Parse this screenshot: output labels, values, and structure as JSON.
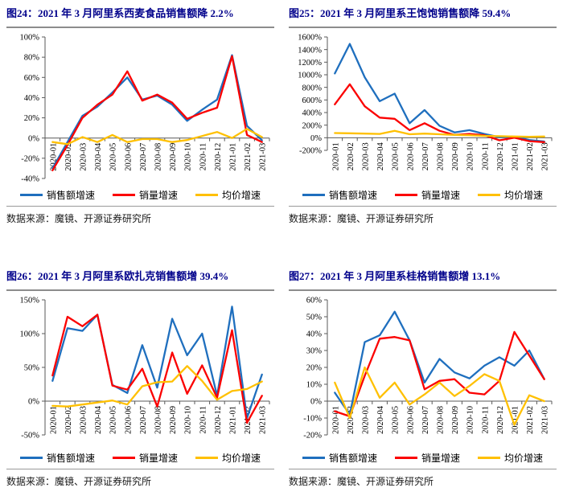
{
  "source_label": "数据来源：魔镜、开源证券研究所",
  "colors": {
    "sales": "#1F6FBE",
    "volume": "#FB0000",
    "price": "#FFC000",
    "title_text": "#00008B",
    "axis": "#595959",
    "rule_heavy": "#8C8C8C",
    "rule_light": "#9A9A9A"
  },
  "chart_data": [
    {
      "id": "fig24",
      "type": "line",
      "title": "图24：2021 年 3 月阿里系西麦食品销售额降 2.2%",
      "xlabel": "",
      "ylabel": "",
      "ylim": [
        -40,
        100
      ],
      "ytick_step": 20,
      "grid": false,
      "legend_position": "bottom",
      "categories": [
        "2020-01",
        "2020-02",
        "2020-03",
        "2020-04",
        "2020-05",
        "2020-06",
        "2020-07",
        "2020-08",
        "2020-09",
        "2020-10",
        "2020-11",
        "2020-12",
        "2021-01",
        "2021-02",
        "2021-03"
      ],
      "series": [
        {
          "name": "销售额增速",
          "color_key": "sales",
          "values": [
            -30,
            -4,
            22,
            31,
            45,
            60,
            38,
            42,
            33,
            17,
            28,
            38,
            82,
            12,
            -2.2
          ]
        },
        {
          "name": "销量增速",
          "color_key": "volume",
          "values": [
            -32,
            -7,
            20,
            33,
            43,
            66,
            37,
            43,
            35,
            19,
            25,
            30,
            81,
            3,
            -4
          ]
        },
        {
          "name": "均价增速",
          "color_key": "price",
          "values": [
            -4,
            -6,
            1,
            -4,
            3,
            -4,
            -1,
            -1,
            -4,
            -2,
            2,
            6,
            0,
            9,
            1
          ]
        }
      ]
    },
    {
      "id": "fig25",
      "type": "line",
      "title": "图25：2021 年 3 月阿里系王饱饱销售额降 59.4%",
      "xlabel": "",
      "ylabel": "",
      "ylim": [
        -200,
        1600
      ],
      "ytick_step": 200,
      "grid": false,
      "legend_position": "bottom",
      "categories": [
        "2020-01",
        "2020-02",
        "2020-03",
        "2020-04",
        "2020-05",
        "2020-06",
        "2020-07",
        "2020-08",
        "2020-09",
        "2020-10",
        "2020-11",
        "2020-12",
        "2021-01",
        "2021-02",
        "2021-03"
      ],
      "series": [
        {
          "name": "销售额增速",
          "color_key": "sales",
          "values": [
            1020,
            1490,
            960,
            580,
            700,
            230,
            440,
            190,
            85,
            120,
            60,
            10,
            15,
            -35,
            -59.4
          ]
        },
        {
          "name": "销量增速",
          "color_key": "volume",
          "values": [
            530,
            850,
            500,
            320,
            300,
            120,
            230,
            110,
            45,
            60,
            40,
            -40,
            0,
            -55,
            -70
          ]
        },
        {
          "name": "均价增速",
          "color_key": "price",
          "values": [
            75,
            70,
            65,
            60,
            110,
            55,
            65,
            55,
            45,
            40,
            30,
            25,
            20,
            15,
            20
          ]
        }
      ]
    },
    {
      "id": "fig26",
      "type": "line",
      "title": "图26：2021 年 3 月阿里系欧扎克销售额增 39.4%",
      "xlabel": "",
      "ylabel": "",
      "ylim": [
        -50,
        150
      ],
      "ytick_step": 50,
      "grid": false,
      "legend_position": "bottom",
      "categories": [
        "2020-01",
        "2020-02",
        "2020-03",
        "2020-04",
        "2020-05",
        "2020-06",
        "2020-07",
        "2020-08",
        "2020-09",
        "2020-10",
        "2020-11",
        "2020-12",
        "2021-01",
        "2021-02",
        "2021-03"
      ],
      "series": [
        {
          "name": "销售额增速",
          "color_key": "sales",
          "values": [
            30,
            108,
            104,
            128,
            24,
            12,
            83,
            20,
            122,
            68,
            100,
            8,
            140,
            -25,
            39.4
          ]
        },
        {
          "name": "销量增速",
          "color_key": "volume",
          "values": [
            38,
            125,
            111,
            128,
            23,
            17,
            48,
            -8,
            72,
            11,
            53,
            5,
            105,
            -32,
            8
          ]
        },
        {
          "name": "均价增速",
          "color_key": "price",
          "values": [
            -7,
            -8,
            -5,
            -2,
            1,
            -5,
            22,
            28,
            29,
            52,
            30,
            2,
            15,
            18,
            29
          ]
        }
      ]
    },
    {
      "id": "fig27",
      "type": "line",
      "title": "图27：2021 年 3 月阿里系桂格销售额增 13.1%",
      "xlabel": "",
      "ylabel": "",
      "ylim": [
        -20,
        60
      ],
      "ytick_step": 10,
      "grid": false,
      "legend_position": "bottom",
      "categories": [
        "2020-01",
        "2020-02",
        "2020-03",
        "2020-04",
        "2020-05",
        "2020-06",
        "2020-07",
        "2020-08",
        "2020-09",
        "2020-10",
        "2020-11",
        "2020-12",
        "2021-01",
        "2021-02",
        "2021-03"
      ],
      "series": [
        {
          "name": "销售额增速",
          "color_key": "sales",
          "values": [
            5,
            -8,
            35,
            39,
            53,
            36,
            11,
            25,
            17,
            13.5,
            21,
            26,
            21,
            30,
            13.1
          ]
        },
        {
          "name": "销量增速",
          "color_key": "volume",
          "values": [
            -6,
            -9,
            15,
            37,
            38,
            36,
            7,
            12,
            13,
            5,
            4,
            12,
            41,
            27,
            13
          ]
        },
        {
          "name": "均价增速",
          "color_key": "price",
          "values": [
            11,
            -10,
            20,
            2,
            11,
            -2,
            4,
            11,
            3,
            9,
            16,
            12,
            -14,
            3.5,
            0
          ]
        }
      ]
    }
  ]
}
